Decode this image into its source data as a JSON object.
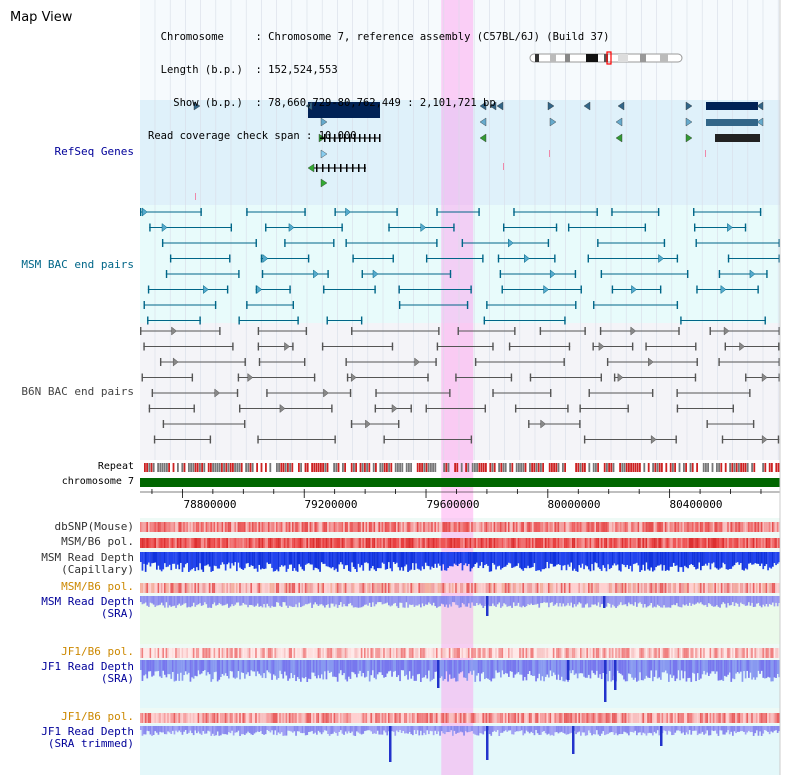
{
  "app": {
    "title": "Map View"
  },
  "header": {
    "lines": [
      {
        "key": "  Chromosome     ",
        "value": "Chromosome 7, reference assembly (C57BL/6J) (Build 37)"
      },
      {
        "key": "  Length (b.p.)  ",
        "value": "152,524,553"
      },
      {
        "key": "    Show (b.p.)  ",
        "value": "78,660,729-80,762,449 : 2,101,721 bp"
      },
      {
        "key": "Read coverage check span",
        "value": "10,000"
      }
    ]
  },
  "tracks": {
    "refseq": {
      "label": "RefSeq Genes",
      "color": "#000099"
    },
    "msm_bac": {
      "label": "MSM BAC end pairs",
      "color": "#006688"
    },
    "b6n_bac": {
      "label": "B6N BAC end pairs",
      "color": "#444444"
    },
    "repeat": {
      "label": "Repeat"
    },
    "chromosome": {
      "label": "chromosome 7",
      "color": "#006600"
    },
    "dbsnp": {
      "label": "dbSNP(Mouse)"
    },
    "msm_b6_pol_1": {
      "label": "MSM/B6 pol."
    },
    "msm_depth_cap": {
      "label_lines": [
        "MSM Read Depth",
        "(Capillary)"
      ],
      "color": "#333333"
    },
    "msm_b6_pol_2": {
      "label": "MSM/B6 pol.",
      "color": "#cc8800"
    },
    "msm_depth_sra": {
      "label_lines": [
        "MSM Read Depth",
        "(SRA)"
      ],
      "color": "#000099"
    },
    "jf1_b6_pol_1": {
      "label": "JF1/B6 pol.",
      "color": "#cc8800"
    },
    "jf1_depth_sra": {
      "label_lines": [
        "JF1 Read Depth",
        "(SRA)"
      ],
      "color": "#000099"
    },
    "jf1_b6_pol_2": {
      "label": "JF1/B6 pol.",
      "color": "#cc8800"
    },
    "jf1_depth_trim": {
      "label_lines": [
        "JF1 Read Depth",
        "(SRA trimmed)"
      ],
      "color": "#000099"
    }
  },
  "axis": {
    "start": 78660729,
    "end": 80762449,
    "ticks": [
      {
        "value": 78800000,
        "label": "78800000"
      },
      {
        "value": 79200000,
        "label": "79200000"
      },
      {
        "value": 79600000,
        "label": "79600000"
      },
      {
        "value": 80000000,
        "label": "80000000"
      },
      {
        "value": 80400000,
        "label": "80400000"
      }
    ]
  },
  "highlight": {
    "start": 79650000,
    "end": 79755000,
    "color": "#ff99ee"
  },
  "colors": {
    "refseq_bg": "#dff1fa",
    "msm_bg": "#e8fbfb",
    "b6n_bg": "#f4f4f8",
    "lower_bg": "#eefaf6"
  }
}
